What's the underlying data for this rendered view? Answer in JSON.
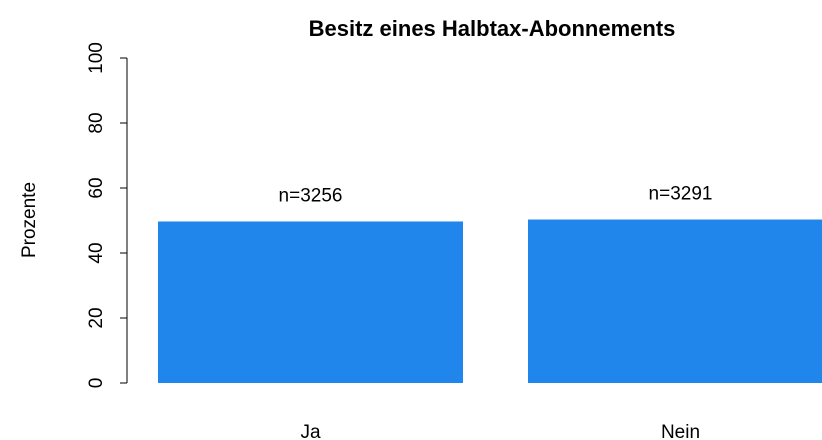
{
  "chart_data": {
    "type": "bar",
    "title": "Besitz eines Halbtax-Abonnements",
    "ylabel": "Prozente",
    "categories": [
      "Ja",
      "Nein"
    ],
    "values": [
      49.7,
      50.3
    ],
    "annotations": [
      "n=3256",
      "n=3291"
    ],
    "color": "#2086ec",
    "ylim": [
      0,
      100
    ],
    "yticks": [
      0,
      20,
      40,
      60,
      80,
      100
    ],
    "grid": false
  }
}
